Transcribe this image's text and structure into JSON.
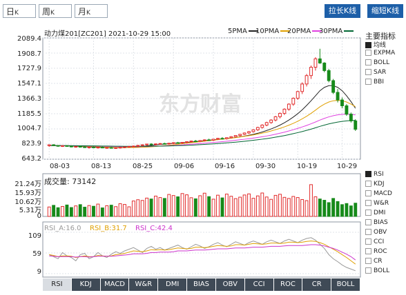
{
  "period_tabs": [
    {
      "label": "日",
      "suffix": "K",
      "active": true
    },
    {
      "label": "周",
      "suffix": "K",
      "active": false
    },
    {
      "label": "月",
      "suffix": "K",
      "active": false
    }
  ],
  "top_buttons": {
    "stretch": "拉长K线",
    "shrink": "缩短K线"
  },
  "header": {
    "title": "动力煤201[ZC201] 2021-10-29 15:00"
  },
  "ma_legend": [
    {
      "label": "5PMA",
      "color": "#222222"
    },
    {
      "label": "10PMA",
      "color": "#e0a000"
    },
    {
      "label": "20PMA",
      "color": "#e040e0"
    },
    {
      "label": "30PMA",
      "color": "#006633"
    }
  ],
  "main_indicator_title": "主要指标",
  "main_indicators": [
    {
      "label": "均线",
      "selected": true
    },
    {
      "label": "EXPMA",
      "selected": false
    },
    {
      "label": "BOLL",
      "selected": false
    },
    {
      "label": "SAR",
      "selected": false
    },
    {
      "label": "BBI",
      "selected": false
    }
  ],
  "sub_indicators": [
    {
      "label": "RSI",
      "selected": true
    },
    {
      "label": "KDJ",
      "selected": false
    },
    {
      "label": "MACD",
      "selected": false
    },
    {
      "label": "W&R",
      "selected": false
    },
    {
      "label": "DMI",
      "selected": false
    },
    {
      "label": "BIAS",
      "selected": false
    },
    {
      "label": "OBV",
      "selected": false
    },
    {
      "label": "CCI",
      "selected": false
    },
    {
      "label": "ROC",
      "selected": false
    },
    {
      "label": "CR",
      "selected": false
    },
    {
      "label": "BOLL",
      "selected": false
    }
  ],
  "price_axis": [
    "2089.4",
    "1908.7",
    "1727.9",
    "1547.1",
    "1366.3",
    "1185.5",
    "1004.7",
    "823.9",
    "643.2"
  ],
  "date_axis": [
    "08-03",
    "08-13",
    "08-25",
    "09-06",
    "09-16",
    "09-30",
    "10-19",
    "10-29"
  ],
  "volume": {
    "label": "成交量: 73142",
    "axis": [
      "21.24万",
      "15.93万",
      "10.62万",
      "5.31万",
      "0"
    ]
  },
  "rsi": {
    "axis": [
      "109",
      "59",
      "9"
    ],
    "labels": [
      "RSI_A:16.0",
      "RSI_B:31.7",
      "RSI_C:42.4"
    ],
    "colors": [
      "#999999",
      "#e0a000",
      "#cc33cc"
    ]
  },
  "watermark": "东方财富",
  "bottom_tabs": [
    "RSI",
    "KDJ",
    "MACD",
    "W&R",
    "DMI",
    "BIAS",
    "OBV",
    "CCI",
    "ROC",
    "CR",
    "BOLL"
  ],
  "chart_data": {
    "type": "candlestick",
    "ylim": [
      643.2,
      2089.4
    ],
    "x_dates": [
      "08-03",
      "08-13",
      "08-25",
      "09-06",
      "09-16",
      "09-30",
      "10-19",
      "10-29"
    ],
    "candles": [
      [
        805,
        820,
        790,
        815
      ],
      [
        815,
        822,
        800,
        806
      ],
      [
        806,
        812,
        792,
        800
      ],
      [
        800,
        808,
        790,
        804
      ],
      [
        804,
        812,
        795,
        798
      ],
      [
        798,
        806,
        785,
        792
      ],
      [
        792,
        800,
        782,
        795
      ],
      [
        795,
        804,
        786,
        790
      ],
      [
        790,
        798,
        778,
        784
      ],
      [
        784,
        792,
        770,
        788
      ],
      [
        788,
        796,
        776,
        780
      ],
      [
        780,
        790,
        770,
        786
      ],
      [
        786,
        794,
        774,
        778
      ],
      [
        778,
        786,
        768,
        782
      ],
      [
        782,
        790,
        772,
        776
      ],
      [
        776,
        784,
        766,
        780
      ],
      [
        780,
        788,
        770,
        785
      ],
      [
        785,
        795,
        775,
        790
      ],
      [
        790,
        800,
        780,
        796
      ],
      [
        796,
        806,
        786,
        800
      ],
      [
        800,
        812,
        792,
        808
      ],
      [
        808,
        820,
        798,
        815
      ],
      [
        815,
        828,
        806,
        824
      ],
      [
        824,
        834,
        814,
        818
      ],
      [
        818,
        830,
        808,
        826
      ],
      [
        826,
        836,
        816,
        830
      ],
      [
        830,
        840,
        820,
        826
      ],
      [
        826,
        838,
        816,
        834
      ],
      [
        834,
        846,
        824,
        840
      ],
      [
        840,
        850,
        830,
        836
      ],
      [
        836,
        848,
        826,
        844
      ],
      [
        844,
        856,
        834,
        852
      ],
      [
        852,
        864,
        842,
        860
      ],
      [
        860,
        872,
        850,
        856
      ],
      [
        856,
        870,
        846,
        866
      ],
      [
        866,
        880,
        856,
        874
      ],
      [
        874,
        888,
        864,
        870
      ],
      [
        870,
        886,
        860,
        882
      ],
      [
        882,
        898,
        872,
        892
      ],
      [
        892,
        906,
        880,
        888
      ],
      [
        888,
        904,
        878,
        900
      ],
      [
        900,
        918,
        890,
        912
      ],
      [
        912,
        930,
        902,
        926
      ],
      [
        926,
        946,
        914,
        940
      ],
      [
        940,
        962,
        930,
        956
      ],
      [
        956,
        980,
        944,
        972
      ],
      [
        972,
        1000,
        960,
        994
      ],
      [
        994,
        1030,
        980,
        1022
      ],
      [
        1022,
        1060,
        1008,
        1050
      ],
      [
        1050,
        1090,
        1036,
        1080
      ],
      [
        1080,
        1120,
        1066,
        1110
      ],
      [
        1110,
        1160,
        1094,
        1150
      ],
      [
        1150,
        1200,
        1130,
        1190
      ],
      [
        1190,
        1250,
        1170,
        1240
      ],
      [
        1240,
        1310,
        1220,
        1300
      ],
      [
        1300,
        1380,
        1280,
        1370
      ],
      [
        1370,
        1460,
        1350,
        1450
      ],
      [
        1450,
        1560,
        1420,
        1540
      ],
      [
        1540,
        1660,
        1510,
        1640
      ],
      [
        1640,
        1760,
        1600,
        1740
      ],
      [
        1740,
        1860,
        1700,
        1840
      ],
      [
        1840,
        1960,
        1780,
        1790
      ],
      [
        1790,
        1800,
        1680,
        1700
      ],
      [
        1700,
        1720,
        1560,
        1580
      ],
      [
        1580,
        1600,
        1420,
        1440
      ],
      [
        1440,
        1480,
        1320,
        1350
      ],
      [
        1350,
        1380,
        1250,
        1280
      ],
      [
        1280,
        1300,
        1160,
        1180
      ],
      [
        1180,
        1200,
        1080,
        1100
      ],
      [
        1100,
        1120,
        980,
        1000
      ]
    ],
    "ma": [
      {
        "name": "5PMA",
        "values": [
          805,
          806,
          805,
          803,
          802,
          800,
          797,
          795,
          793,
          790,
          787,
          785,
          784,
          783,
          782,
          781,
          781,
          782,
          784,
          787,
          791,
          796,
          802,
          808,
          814,
          820,
          824,
          828,
          832,
          836,
          840,
          844,
          849,
          853,
          858,
          864,
          869,
          874,
          879,
          884,
          889,
          895,
          902,
          910,
          919,
          929,
          940,
          953,
          968,
          985,
          1004,
          1026,
          1050,
          1078,
          1110,
          1146,
          1186,
          1232,
          1284,
          1340,
          1400,
          1460,
          1500,
          1520,
          1520,
          1500,
          1460,
          1400,
          1330,
          1250
        ]
      },
      {
        "name": "10PMA",
        "values": [
          805,
          805,
          805,
          804,
          803,
          802,
          800,
          799,
          797,
          795,
          793,
          791,
          789,
          787,
          785,
          784,
          783,
          782,
          782,
          783,
          784,
          786,
          788,
          791,
          795,
          800,
          805,
          810,
          816,
          822,
          828,
          834,
          840,
          846,
          852,
          858,
          864,
          870,
          876,
          882,
          888,
          894,
          901,
          908,
          916,
          924,
          933,
          943,
          954,
          966,
          980,
          995,
          1011,
          1029,
          1049,
          1071,
          1096,
          1124,
          1155,
          1190,
          1228,
          1268,
          1300,
          1325,
          1340,
          1345,
          1340,
          1325,
          1300,
          1270
        ]
      },
      {
        "name": "20PMA",
        "values": [
          805,
          805,
          805,
          805,
          804,
          804,
          803,
          802,
          801,
          800,
          799,
          798,
          797,
          796,
          795,
          794,
          793,
          793,
          793,
          793,
          793,
          794,
          795,
          796,
          798,
          800,
          802,
          805,
          808,
          811,
          814,
          818,
          822,
          826,
          830,
          834,
          838,
          843,
          848,
          853,
          858,
          863,
          869,
          875,
          881,
          888,
          895,
          903,
          911,
          920,
          930,
          941,
          953,
          966,
          980,
          995,
          1011,
          1028,
          1046,
          1066,
          1087,
          1110,
          1130,
          1148,
          1162,
          1172,
          1178,
          1180,
          1178,
          1172
        ]
      },
      {
        "name": "30PMA",
        "values": [
          805,
          805,
          805,
          805,
          805,
          804,
          804,
          803,
          803,
          802,
          802,
          801,
          800,
          800,
          799,
          798,
          798,
          797,
          797,
          797,
          797,
          797,
          797,
          798,
          798,
          799,
          800,
          801,
          803,
          805,
          807,
          809,
          811,
          814,
          817,
          820,
          823,
          826,
          830,
          834,
          838,
          842,
          847,
          852,
          857,
          863,
          869,
          875,
          882,
          889,
          897,
          906,
          915,
          925,
          936,
          948,
          960,
          973,
          987,
          1002,
          1018,
          1035,
          1050,
          1064,
          1076,
          1086,
          1094,
          1100,
          1104,
          1106
        ]
      }
    ],
    "volume_values": [
      5.2,
      6.1,
      4.8,
      5.5,
      6.3,
      4.9,
      5.8,
      6.5,
      5.1,
      6.0,
      5.6,
      6.8,
      4.7,
      5.9,
      6.2,
      5.4,
      7.0,
      6.6,
      5.3,
      8.5,
      9.2,
      8.8,
      10.1,
      9.6,
      11.2,
      10.4,
      9.9,
      12.1,
      11.5,
      10.8,
      12.6,
      11.9,
      10.3,
      9.7,
      11.4,
      12.8,
      10.9,
      9.5,
      11.7,
      10.2,
      12.3,
      11.1,
      9.8,
      10.6,
      11.8,
      12.4,
      10.0,
      11.3,
      12.9,
      10.7,
      9.4,
      11.6,
      12.2,
      10.5,
      9.9,
      11.0,
      10.4,
      9.3,
      8.7,
      17.5,
      10.8,
      9.6,
      8.9,
      7.6,
      9.9,
      8.2,
      6.5,
      7.1,
      5.8,
      7.3
    ],
    "volume_ylim": [
      0,
      21.24
    ],
    "rsi_series": [
      {
        "name": "RSI_A",
        "values": [
          55,
          50,
          45,
          60,
          52,
          48,
          40,
          55,
          58,
          45,
          50,
          60,
          52,
          48,
          56,
          62,
          58,
          64,
          68,
          72,
          66,
          60,
          70,
          75,
          68,
          72,
          66,
          70,
          74,
          78,
          72,
          68,
          74,
          80,
          76,
          70,
          74,
          80,
          84,
          78,
          74,
          80,
          86,
          82,
          78,
          84,
          88,
          84,
          80,
          86,
          90,
          86,
          82,
          88,
          92,
          88,
          84,
          90,
          94,
          96,
          90,
          80,
          70,
          55,
          45,
          38,
          30,
          24,
          20,
          16
        ]
      },
      {
        "name": "RSI_B",
        "values": [
          55,
          53,
          50,
          52,
          52,
          51,
          48,
          50,
          52,
          50,
          50,
          53,
          52,
          51,
          52,
          55,
          56,
          58,
          61,
          64,
          63,
          62,
          64,
          67,
          66,
          67,
          66,
          67,
          69,
          71,
          70,
          69,
          70,
          73,
          73,
          72,
          73,
          75,
          77,
          76,
          75,
          76,
          79,
          79,
          78,
          80,
          82,
          81,
          80,
          81,
          83,
          83,
          82,
          83,
          85,
          85,
          84,
          85,
          87,
          88,
          87,
          84,
          80,
          74,
          68,
          62,
          55,
          48,
          40,
          32
        ]
      },
      {
        "name": "RSI_C",
        "values": [
          52,
          51,
          50,
          50,
          50,
          50,
          49,
          50,
          50,
          49,
          50,
          51,
          51,
          51,
          51,
          52,
          53,
          54,
          55,
          57,
          57,
          57,
          58,
          60,
          60,
          61,
          61,
          61,
          62,
          64,
          64,
          64,
          65,
          66,
          66,
          66,
          67,
          68,
          69,
          69,
          69,
          70,
          71,
          71,
          71,
          72,
          73,
          73,
          73,
          74,
          75,
          75,
          75,
          76,
          77,
          77,
          77,
          77,
          78,
          79,
          79,
          78,
          76,
          73,
          70,
          66,
          61,
          56,
          50,
          42
        ]
      }
    ],
    "rsi_ylim": [
      9,
      109
    ]
  }
}
